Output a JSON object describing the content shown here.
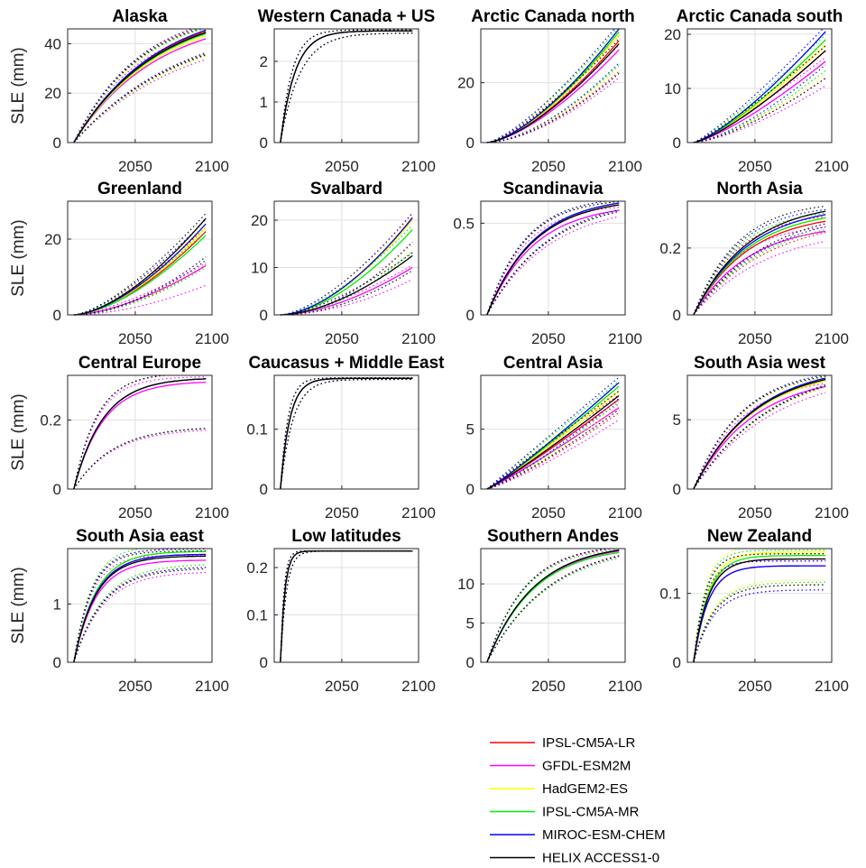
{
  "ylabel": "SLE (mm)",
  "legend": [
    {
      "name": "IPSL-CM5A-LR",
      "color": "#ff0000"
    },
    {
      "name": "GFDL-ESM2M",
      "color": "#ff00ff"
    },
    {
      "name": "HadGEM2-ES",
      "color": "#ffff00"
    },
    {
      "name": "IPSL-CM5A-MR",
      "color": "#00ee00"
    },
    {
      "name": "MIROC-ESM-CHEM",
      "color": "#0000ff"
    },
    {
      "name": "HELIX ACCESS1-0",
      "color": "#000000"
    }
  ],
  "chart_data": [
    {
      "type": "line",
      "title": "Alaska",
      "ylabel": "SLE (mm)",
      "xlim": [
        2006,
        2100
      ],
      "ylim": [
        0,
        46
      ],
      "xticks": [
        2050,
        2100
      ],
      "yticks": [
        0,
        20,
        40
      ],
      "final": [
        45,
        42,
        43,
        44,
        45.5,
        44.5
      ],
      "shape": "sat",
      "k": 1.6,
      "spread": 0.2
    },
    {
      "type": "line",
      "title": "Western Canada + US",
      "ylabel": "",
      "xlim": [
        2006,
        2100
      ],
      "ylim": [
        0,
        2.8
      ],
      "xticks": [
        2050,
        2100
      ],
      "yticks": [
        0,
        1,
        2
      ],
      "final": [
        2.75,
        2.75,
        2.75,
        2.75,
        2.75,
        2.75
      ],
      "shape": "sat",
      "k": 9,
      "spread": 0.02
    },
    {
      "type": "line",
      "title": "Arctic Canada north",
      "ylabel": "",
      "xlim": [
        2006,
        2100
      ],
      "ylim": [
        0,
        38
      ],
      "xticks": [
        2050,
        2100
      ],
      "yticks": [
        0,
        20
      ],
      "final": [
        34,
        31,
        36,
        37,
        38,
        33
      ],
      "shape": "pow",
      "k": 1.5,
      "spread": 0.3
    },
    {
      "type": "line",
      "title": "Arctic Canada south",
      "ylabel": "",
      "xlim": [
        2006,
        2100
      ],
      "ylim": [
        0,
        21
      ],
      "xticks": [
        2050,
        2100
      ],
      "yticks": [
        0,
        10,
        20
      ],
      "final": [
        17,
        15,
        18,
        19,
        20.5,
        17
      ],
      "shape": "pow",
      "k": 1.3,
      "spread": 0.3
    },
    {
      "type": "line",
      "title": "Greenland",
      "ylabel": "SLE (mm)",
      "xlim": [
        2006,
        2100
      ],
      "ylim": [
        0,
        30
      ],
      "xticks": [
        2050,
        2100
      ],
      "yticks": [
        0,
        20
      ],
      "final": [
        22,
        13,
        23,
        21,
        24,
        25.5
      ],
      "shape": "pow",
      "k": 1.6,
      "spread": 0.4
    },
    {
      "type": "line",
      "title": "Svalbard",
      "ylabel": "",
      "xlim": [
        2006,
        2100
      ],
      "ylim": [
        0,
        24
      ],
      "xticks": [
        2050,
        2100
      ],
      "yticks": [
        0,
        10,
        20
      ],
      "final": [
        20.5,
        10,
        20,
        18,
        20.5,
        12.5
      ],
      "shape": "pow",
      "k": 1.7,
      "spread": 0.25
    },
    {
      "type": "line",
      "title": "Scandinavia",
      "ylabel": "",
      "xlim": [
        2006,
        2100
      ],
      "ylim": [
        0,
        0.62
      ],
      "xticks": [
        2050,
        2100
      ],
      "yticks": [
        0,
        0.5
      ],
      "final": [
        0.6,
        0.57,
        0.61,
        0.61,
        0.61,
        0.6
      ],
      "shape": "sat",
      "k": 2.8,
      "spread": 0.06
    },
    {
      "type": "line",
      "title": "North Asia",
      "ylabel": "",
      "xlim": [
        2006,
        2100
      ],
      "ylim": [
        0,
        0.34
      ],
      "xticks": [
        2050,
        2100
      ],
      "yticks": [
        0,
        0.2
      ],
      "final": [
        0.28,
        0.25,
        0.29,
        0.29,
        0.3,
        0.31
      ],
      "shape": "sat",
      "k": 2.4,
      "spread": 0.12
    },
    {
      "type": "line",
      "title": "Central Europe",
      "ylabel": "SLE (mm)",
      "xlim": [
        2006,
        2100
      ],
      "ylim": [
        0,
        0.33
      ],
      "xticks": [
        2050,
        2100
      ],
      "yticks": [
        0,
        0.2
      ],
      "final": [
        0.32,
        0.31,
        0.32,
        0.32,
        0.32,
        0.32
      ],
      "shape": "sat",
      "k": 4.5,
      "spread": 0.45
    },
    {
      "type": "line",
      "title": "Caucasus + Middle East",
      "ylabel": "",
      "xlim": [
        2006,
        2100
      ],
      "ylim": [
        0,
        0.19
      ],
      "xticks": [
        2050,
        2100
      ],
      "yticks": [
        0,
        0.1
      ],
      "final": [
        0.185,
        0.185,
        0.185,
        0.185,
        0.185,
        0.185
      ],
      "shape": "sat",
      "k": 14,
      "spread": 0.01
    },
    {
      "type": "line",
      "title": "Central Asia",
      "ylabel": "",
      "xlim": [
        2006,
        2100
      ],
      "ylim": [
        0,
        9.5
      ],
      "xticks": [
        2050,
        2100
      ],
      "yticks": [
        0,
        5
      ],
      "final": [
        7.5,
        6.8,
        8.2,
        8.6,
        8.9,
        7.8
      ],
      "shape": "lin",
      "k": 1.1,
      "spread": 0.15
    },
    {
      "type": "line",
      "title": "South Asia west",
      "ylabel": "",
      "xlim": [
        2006,
        2100
      ],
      "ylim": [
        0,
        8.2
      ],
      "xticks": [
        2050,
        2100
      ],
      "yticks": [
        0,
        5
      ],
      "final": [
        7.8,
        7.4,
        7.8,
        7.9,
        8.0,
        7.9
      ],
      "shape": "sat",
      "k": 2.2,
      "spread": 0.06
    },
    {
      "type": "line",
      "title": "South Asia east",
      "ylabel": "SLE (mm)",
      "xlim": [
        2006,
        2100
      ],
      "ylim": [
        0,
        1.95
      ],
      "xticks": [
        2050,
        2100
      ],
      "yticks": [
        0,
        1
      ],
      "final": [
        1.85,
        1.75,
        1.9,
        1.9,
        1.85,
        1.82
      ],
      "shape": "sat",
      "k": 6,
      "spread": 0.12
    },
    {
      "type": "line",
      "title": "Low latitudes",
      "ylabel": "",
      "xlim": [
        2006,
        2100
      ],
      "ylim": [
        0,
        0.24
      ],
      "xticks": [
        2050,
        2100
      ],
      "yticks": [
        0,
        0.1,
        0.2
      ],
      "final": [
        0.235,
        0.235,
        0.235,
        0.235,
        0.235,
        0.235
      ],
      "shape": "sat",
      "k": 30,
      "spread": 0.002
    },
    {
      "type": "line",
      "title": "Southern Andes",
      "ylabel": "",
      "xlim": [
        2006,
        2100
      ],
      "ylim": [
        0,
        14.5
      ],
      "xticks": [
        2050,
        2100
      ],
      "yticks": [
        0,
        5,
        10
      ],
      "final": [
        14.2,
        14.2,
        14.3,
        14.0,
        14.3,
        14.3
      ],
      "shape": "sat",
      "k": 2.8,
      "spread": 0.05
    },
    {
      "type": "line",
      "title": "New Zealand",
      "ylabel": "",
      "xlim": [
        2006,
        2100
      ],
      "ylim": [
        0,
        0.165
      ],
      "xticks": [
        2050,
        2100
      ],
      "yticks": [
        0,
        0.1
      ],
      "final": [
        0.15,
        0.14,
        0.16,
        0.155,
        0.14,
        0.15
      ],
      "shape": "sat",
      "k": 9,
      "spread": 0.25
    }
  ]
}
